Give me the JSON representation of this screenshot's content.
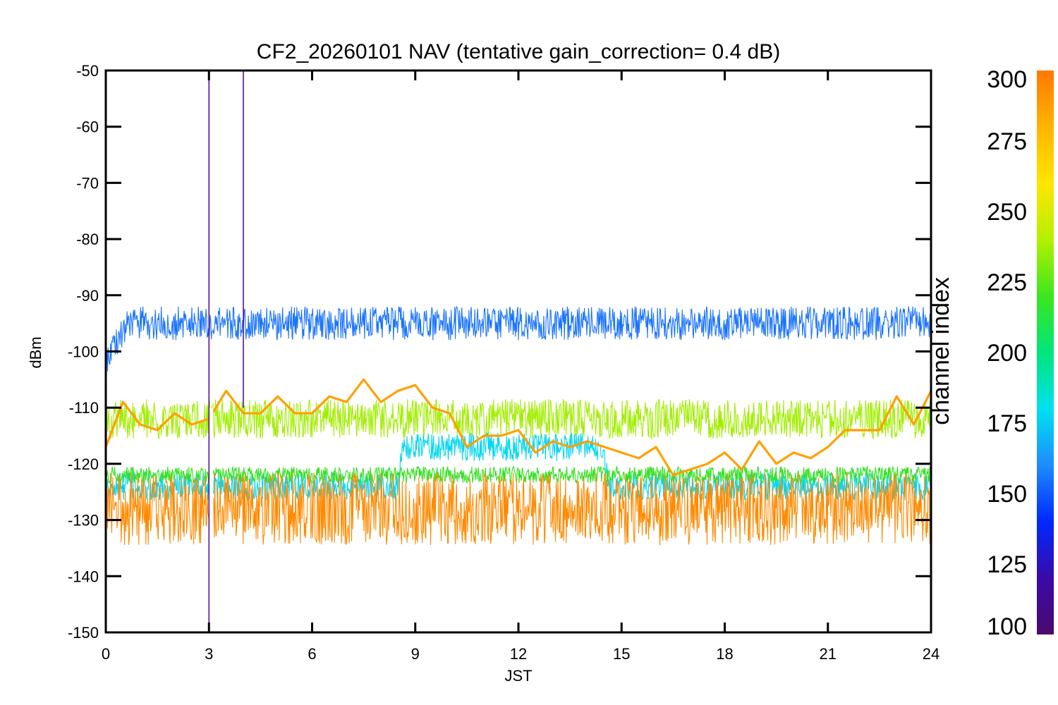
{
  "chart_data": {
    "type": "line",
    "title": "CF2_20260101 NAV (tentative gain_correction=  0.4 dB)",
    "xlabel": "JST",
    "ylabel": "dBm",
    "xlim": [
      0,
      24
    ],
    "ylim": [
      -150,
      -50
    ],
    "xticks": [
      "0",
      "3",
      "6",
      "9",
      "12",
      "15",
      "18",
      "21",
      "24"
    ],
    "yticks": [
      "-50",
      "-60",
      "-70",
      "-80",
      "-90",
      "-100",
      "-110",
      "-120",
      "-130",
      "-140",
      "-150"
    ],
    "grid": false,
    "colorbar": {
      "label": "channel index",
      "range": [
        100,
        300
      ],
      "ticks": [
        "300",
        "275",
        "250",
        "225",
        "200",
        "175",
        "150",
        "125",
        "100"
      ],
      "colormap": [
        "#4b0a6e",
        "#3a0aa8",
        "#0028ff",
        "#1e8cff",
        "#00e1f0",
        "#00e67a",
        "#3ce61e",
        "#b4f000",
        "#ffe600",
        "#ffb400",
        "#ff7800"
      ]
    },
    "series": [
      {
        "name": "channel ~150 (blue band)",
        "color": "#1a73ff",
        "level_x": [
          0,
          0.7,
          24
        ],
        "level_y": [
          -101,
          -95,
          -95
        ],
        "noise_half_range": 3.0
      },
      {
        "name": "channel ~260 (yellow-green band)",
        "color": "#a2ee00",
        "level_x": [
          0,
          24
        ],
        "level_y": [
          -112,
          -112
        ],
        "noise_half_range": 3.5
      },
      {
        "name": "channel ~175 (cyan, burst 8.5-14.5 JST)",
        "color": "#00d6f0",
        "level_x": [
          0,
          8.5,
          8.6,
          14.5,
          14.6,
          24
        ],
        "level_y": [
          -124,
          -124,
          -117,
          -117,
          -124,
          -124
        ],
        "noise_half_range": 2.5
      },
      {
        "name": "channel ~235 (green band)",
        "color": "#32e01e",
        "level_x": [
          0,
          24
        ],
        "level_y": [
          -122,
          -122
        ],
        "noise_half_range": 1.5
      },
      {
        "name": "channels ~290 (orange noise floor)",
        "color": "#ff8a00",
        "level_x": [
          0,
          24
        ],
        "level_y": [
          -128,
          -128
        ],
        "noise_half_range": 6.5
      },
      {
        "name": "channel ~285 (oscillating trace)",
        "color": "#ffa000",
        "x": [
          0,
          0.5,
          1.0,
          1.5,
          2.0,
          2.5,
          3.0,
          3.5,
          4.0,
          4.5,
          5.0,
          5.5,
          6.0,
          6.5,
          7.0,
          7.5,
          8.0,
          8.5,
          9.0,
          9.5,
          10.0,
          10.5,
          11.0,
          11.5,
          12.0,
          12.5,
          13.0,
          13.5,
          14.0,
          14.5,
          15.0,
          15.5,
          16.0,
          16.5,
          17.0,
          17.5,
          18.0,
          18.5,
          19.0,
          19.5,
          20.0,
          20.5,
          21.0,
          21.5,
          22.0,
          22.5,
          23.0,
          23.5,
          24.0
        ],
        "y": [
          -117,
          -109,
          -113,
          -114,
          -111,
          -113,
          -112,
          -107,
          -111,
          -111,
          -108,
          -111,
          -111,
          -108,
          -109,
          -105,
          -109,
          -107,
          -106,
          -110,
          -111,
          -117,
          -115,
          -115,
          -114,
          -118,
          -116,
          -117,
          -116,
          -117,
          -118,
          -119,
          -117,
          -122,
          -121,
          -120,
          -118,
          -121,
          -116,
          -120,
          -118,
          -119,
          -117,
          -114,
          -114,
          -114,
          -108,
          -113,
          -107
        ]
      },
      {
        "name": "spike 3.0 JST (purple)",
        "color": "#5a1090",
        "x": [
          3.0,
          3.0
        ],
        "y": [
          -150,
          -50
        ]
      },
      {
        "name": "spike 4.0 JST (purple)",
        "color": "#5a1090",
        "x": [
          4.0,
          4.0
        ],
        "y": [
          -110,
          -50
        ]
      },
      {
        "name": "spike 3.05 JST (orange)",
        "color": "#ff8a00",
        "x": [
          3.05,
          3.05
        ],
        "y": [
          -150,
          -130
        ]
      }
    ]
  }
}
